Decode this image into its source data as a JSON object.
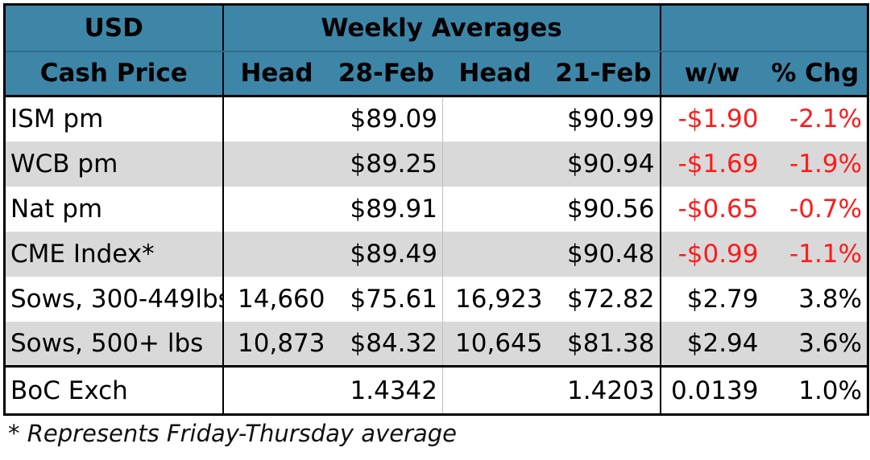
{
  "header": {
    "currency": "USD",
    "weekly_averages": "Weekly Averages",
    "cash_price": "Cash Price",
    "col_head_1": "Head",
    "col_date_1": "28-Feb",
    "col_head_2": "Head",
    "col_date_2": "21-Feb",
    "col_ww": "w/w",
    "col_pct": "% Chg"
  },
  "rows": [
    {
      "label": "ISM pm",
      "head1": "",
      "price1": "$89.09",
      "head2": "",
      "price2": "$90.99",
      "ww": "-$1.90",
      "pct": "-2.1%"
    },
    {
      "label": "WCB pm",
      "head1": "",
      "price1": "$89.25",
      "head2": "",
      "price2": "$90.94",
      "ww": "-$1.69",
      "pct": "-1.9%"
    },
    {
      "label": "Nat pm",
      "head1": "",
      "price1": "$89.91",
      "head2": "",
      "price2": "$90.56",
      "ww": "-$0.65",
      "pct": "-0.7%"
    },
    {
      "label": "CME Index*",
      "head1": "",
      "price1": "$89.49",
      "head2": "",
      "price2": "$90.48",
      "ww": "-$0.99",
      "pct": "-1.1%"
    },
    {
      "label": "Sows, 300-449lbs",
      "head1": "14,660",
      "price1": "$75.61",
      "head2": "16,923",
      "price2": "$72.82",
      "ww": "$2.79",
      "pct": "3.8%"
    },
    {
      "label": "Sows, 500+ lbs",
      "head1": "10,873",
      "price1": "$84.32",
      "head2": "10,645",
      "price2": "$81.38",
      "ww": "$2.94",
      "pct": "3.6%"
    }
  ],
  "boc": {
    "label": "BoC Exch",
    "price1": "1.4342",
    "price2": "1.4203",
    "ww": "0.0139",
    "pct": "1.0%"
  },
  "footnote": "*  Represents Friday-Thursday average",
  "colors": {
    "header_bg": "#3d86a8",
    "shade_bg": "#d9d9d9",
    "negative": "#ff1a1a"
  }
}
